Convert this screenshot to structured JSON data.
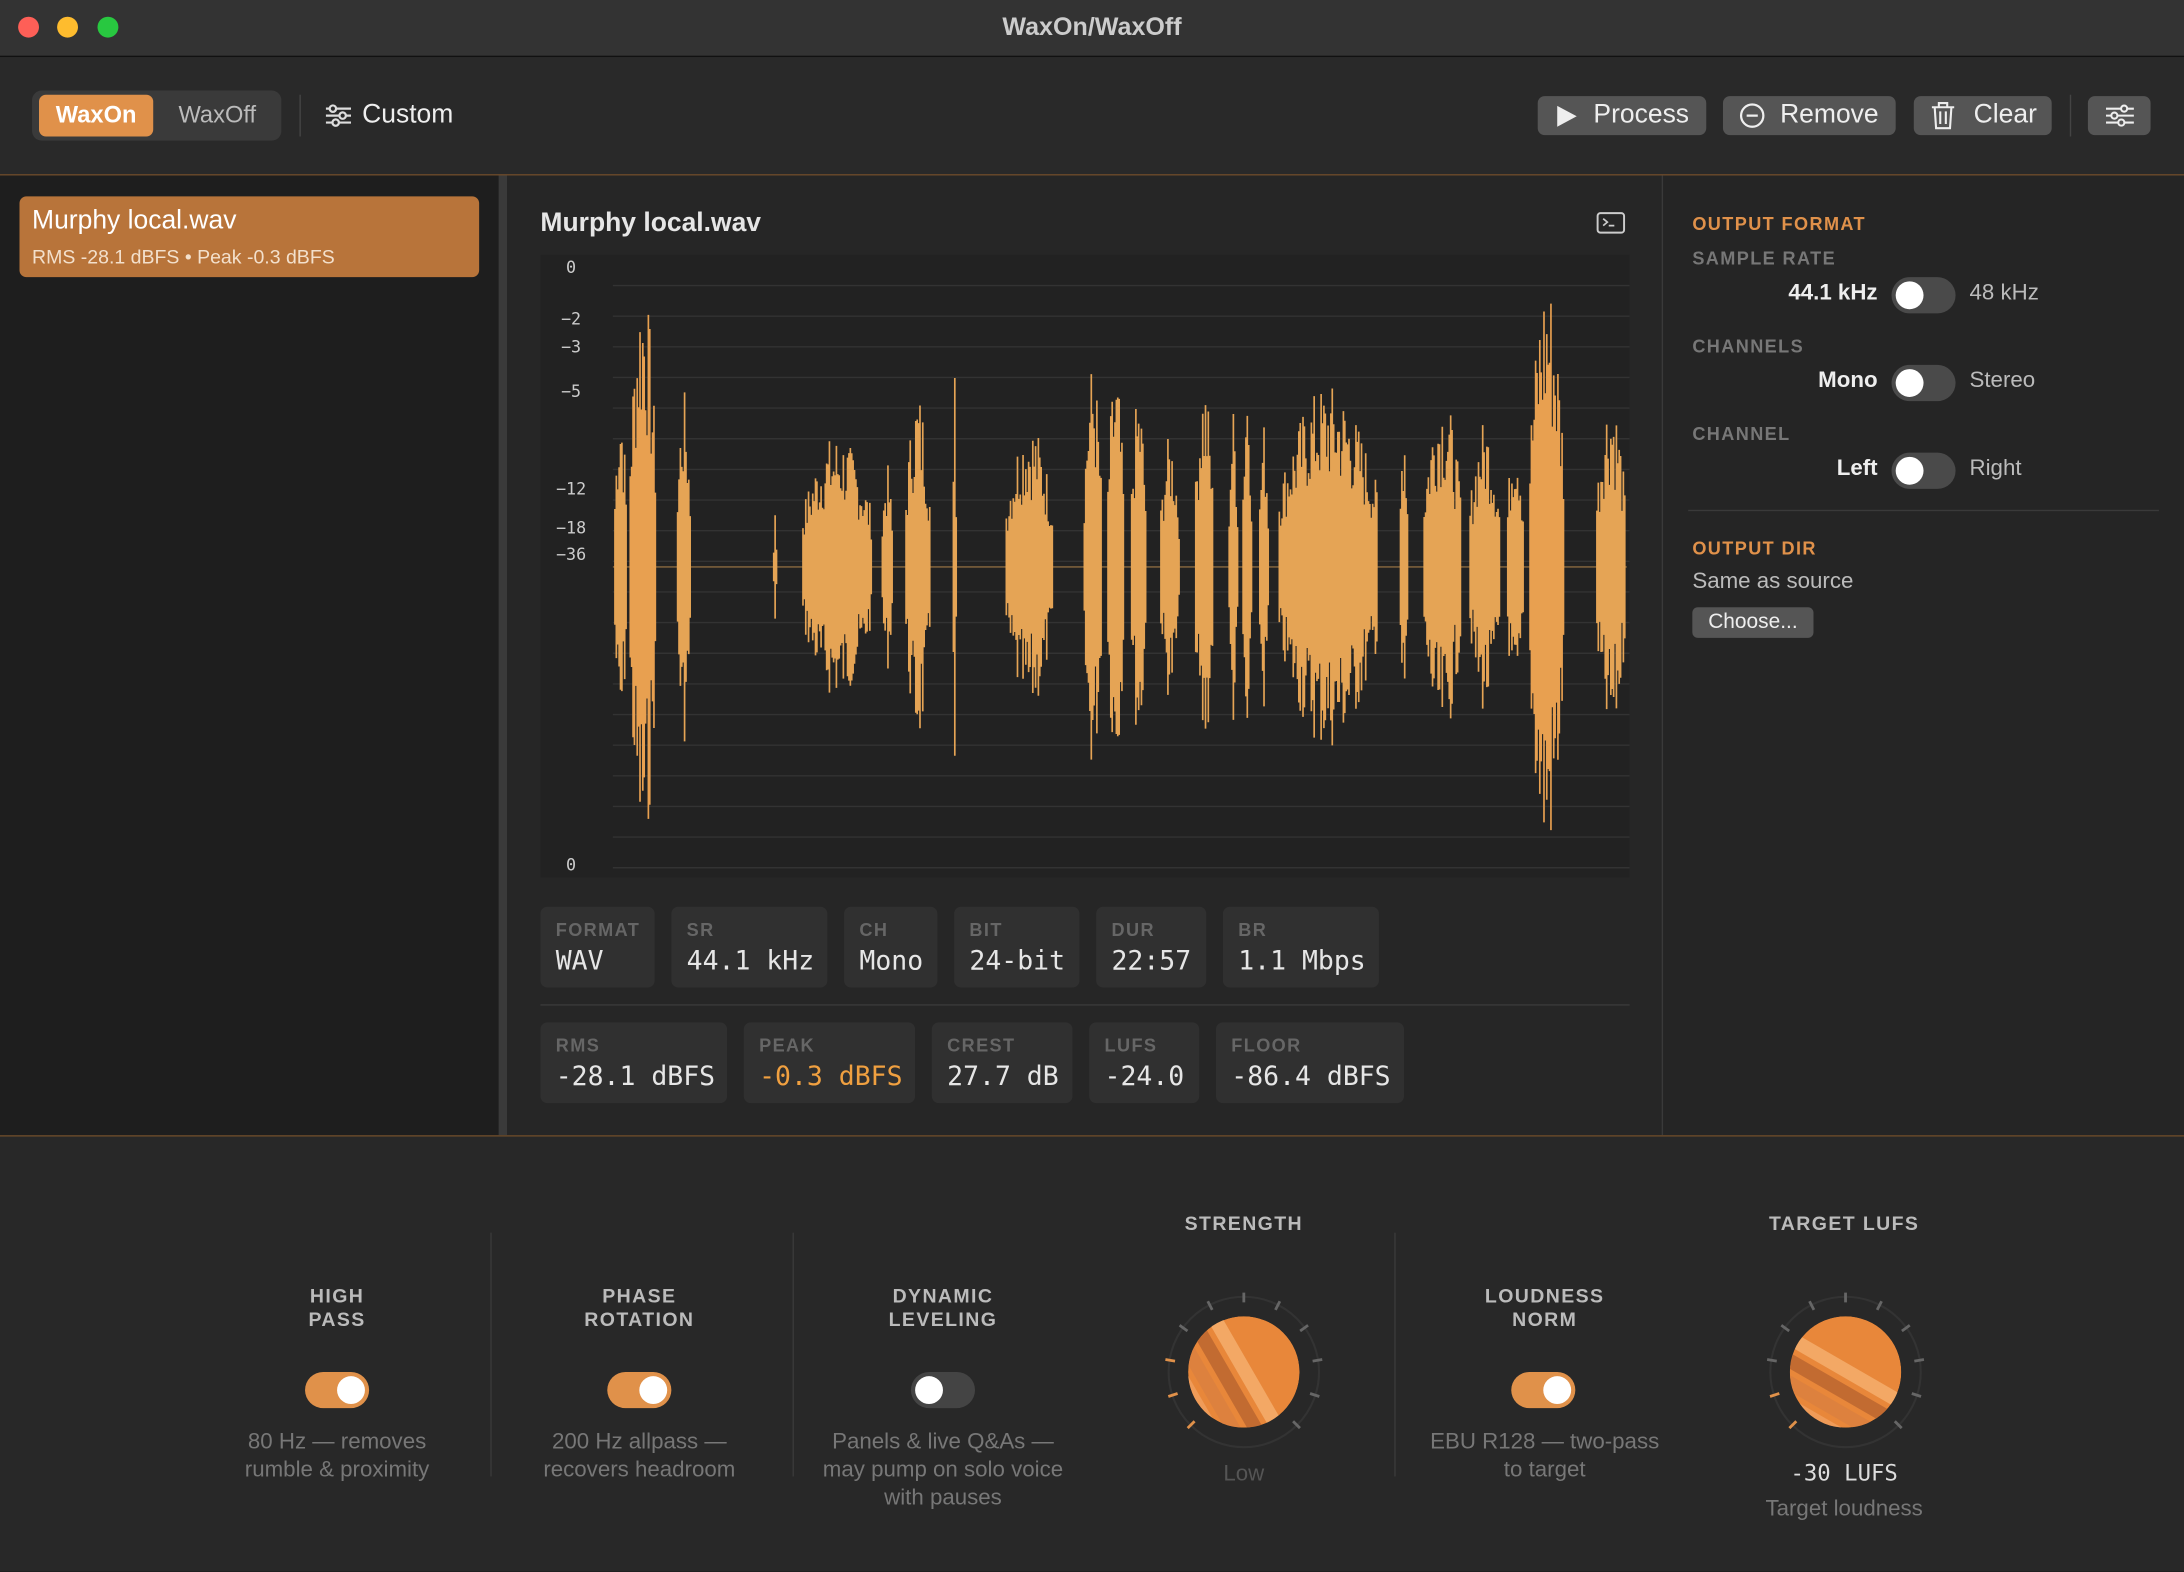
{
  "window": {
    "title": "WaxOn/WaxOff"
  },
  "toolbar": {
    "modes": [
      "WaxOn",
      "WaxOff"
    ],
    "preset": "Custom",
    "actions": [
      "Process",
      "Remove",
      "Clear"
    ]
  },
  "files": [
    {
      "name": "Murphy local.wav",
      "stats": "RMS -28.1 dBFS • Peak -0.3 dBFS"
    }
  ],
  "waveform": {
    "title": "Murphy local.wav",
    "scale_labels": [
      "0",
      "−2",
      "−3",
      "−5",
      "−12",
      "−18",
      "−36",
      "0"
    ]
  },
  "info": [
    {
      "label": "FORMAT",
      "value": "WAV"
    },
    {
      "label": "SR",
      "value": "44.1 kHz"
    },
    {
      "label": "CH",
      "value": "Mono"
    },
    {
      "label": "BIT",
      "value": "24-bit"
    },
    {
      "label": "DUR",
      "value": "22:57"
    },
    {
      "label": "BR",
      "value": "1.1 Mbps"
    }
  ],
  "levels": [
    {
      "label": "RMS",
      "value": "-28.1 dBFS"
    },
    {
      "label": "PEAK",
      "value": "-0.3 dBFS"
    },
    {
      "label": "CREST",
      "value": "27.7 dB"
    },
    {
      "label": "LUFS",
      "value": "-24.0"
    },
    {
      "label": "FLOOR",
      "value": "-86.4 dBFS"
    }
  ],
  "output": {
    "heading": "OUTPUT FORMAT",
    "options": [
      {
        "label": "SAMPLE RATE",
        "left": "44.1 kHz",
        "right": "48 kHz"
      },
      {
        "label": "CHANNELS",
        "left": "Mono",
        "right": "Stereo"
      },
      {
        "label": "CHANNEL",
        "left": "Left",
        "right": "Right"
      }
    ],
    "dir_heading": "OUTPUT DIR",
    "dir": "Same as source",
    "choose": "Choose..."
  },
  "processing": {
    "high_pass": {
      "title": "HIGH PASS",
      "note": "80 Hz — removes rumble & proximity"
    },
    "phase": {
      "title": "PHASE ROTATION",
      "note": "200 Hz allpass — recovers headroom"
    },
    "leveling": {
      "title": "DYNAMIC LEVELING",
      "note": "Panels & live Q&As — may pump on solo voice with pauses"
    },
    "strength": {
      "title": "STRENGTH",
      "setting": "Low"
    },
    "loudness": {
      "title": "LOUDNESS NORM",
      "note": "EBU R128 — two-pass to target"
    },
    "target": {
      "title": "TARGET LUFS",
      "setting": "-30 LUFS",
      "note": "Target loudness"
    }
  }
}
